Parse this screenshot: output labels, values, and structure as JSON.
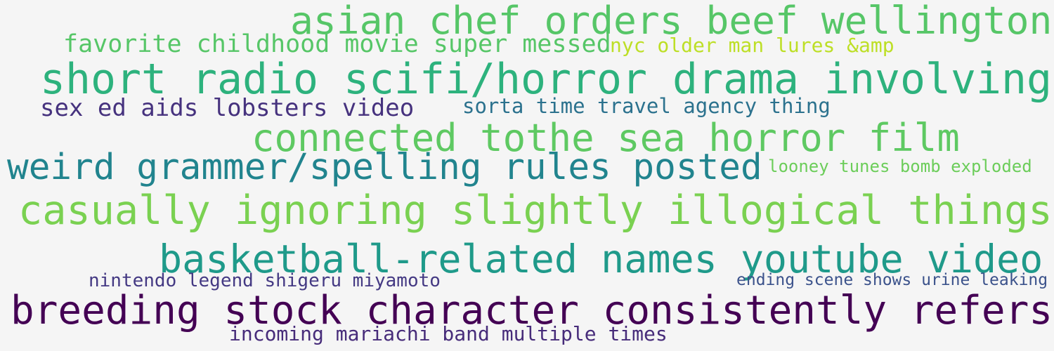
{
  "words": [
    {
      "text": "asian chef orders beef wellington",
      "color": "#56c667"
    },
    {
      "text": "favorite childhood movie super messed",
      "color": "#56c667"
    },
    {
      "text": "nyc older man lures &amp",
      "color": "#bddf26"
    },
    {
      "text": "short radio scifi/horror drama involving",
      "color": "#2db27d"
    },
    {
      "text": "sex ed aids lobsters video",
      "color": "#46327e"
    },
    {
      "text": "sorta time travel agency thing",
      "color": "#2c728e"
    },
    {
      "text": "connected tothe sea horror film",
      "color": "#5ec962"
    },
    {
      "text": "weird grammer/spelling rules posted",
      "color": "#21848e"
    },
    {
      "text": "looney tunes bomb exploded",
      "color": "#6ccd5a"
    },
    {
      "text": "casually ignoring slightly illogical things",
      "color": "#7ad151"
    },
    {
      "text": "basketball-related names youtube video",
      "color": "#1f9a8a"
    },
    {
      "text": "nintendo legend shigeru miyamoto",
      "color": "#443983"
    },
    {
      "text": "ending scene shows urine leaking",
      "color": "#3b528b"
    },
    {
      "text": "breeding stock character consistently refers",
      "color": "#440154"
    },
    {
      "text": "incoming mariachi band multiple times",
      "color": "#472c7a"
    }
  ]
}
